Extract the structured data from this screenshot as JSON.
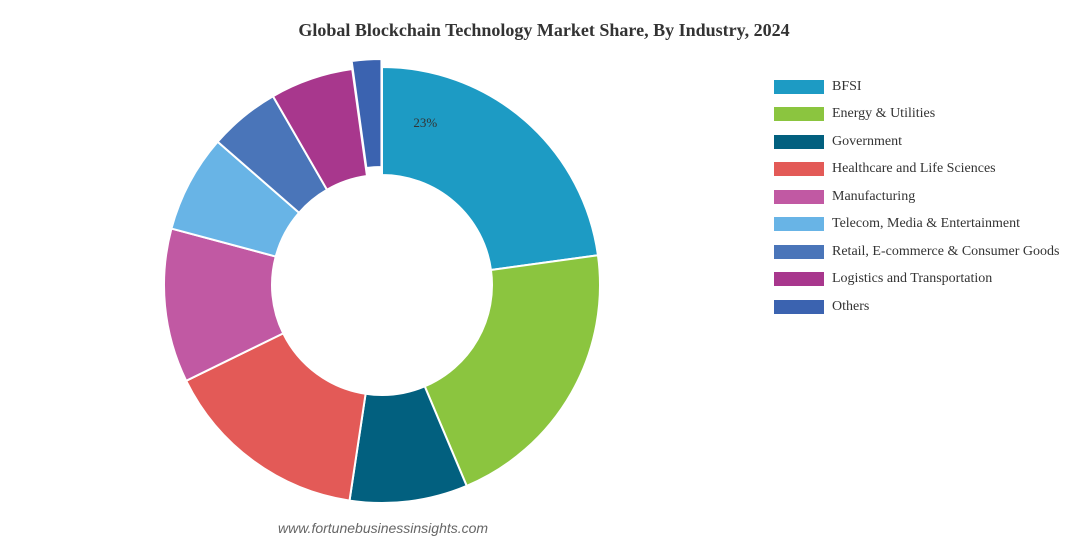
{
  "chart_data": {
    "type": "pie",
    "variant": "donut",
    "title": "Global Blockchain Technology Market Share, By Industry, 2024",
    "categories": [
      "BFSI",
      "Energy & Utilities",
      "Government",
      "Healthcare and Life Sciences",
      "Manufacturing",
      "Telecom, Media & Entertainment",
      "Retail, E-commerce & Consumer Goods",
      "Logistics and Transportation",
      "Others"
    ],
    "values": [
      23,
      21,
      8.8,
      15.5,
      11.5,
      7.3,
      5.3,
      6.2,
      2.2
    ],
    "colors": [
      "#1d9bc4",
      "#8bc53f",
      "#02607f",
      "#e35a57",
      "#c159a3",
      "#68b4e6",
      "#4a75b9",
      "#a8378d",
      "#3b63b0"
    ],
    "data_labels": [
      {
        "series_index": 0,
        "text": "23%"
      }
    ],
    "legend_position": "right"
  },
  "watermark": "www.fortunebusinessinsights.com"
}
